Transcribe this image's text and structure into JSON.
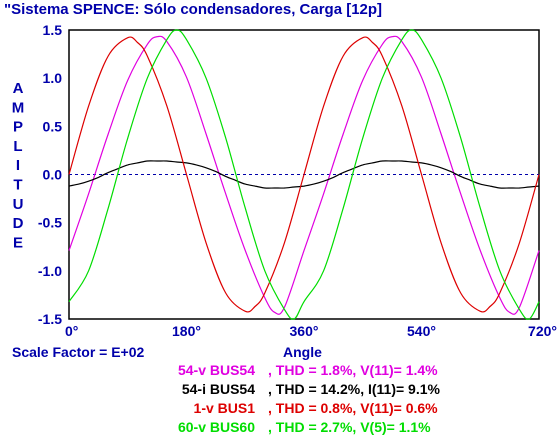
{
  "colors": {
    "axis_text": "#0000aa",
    "frame": "#000000",
    "zero_line": "#0000aa"
  },
  "chart_data": {
    "type": "line",
    "title": "\"Sistema SPENCE: Sólo condensadores, Carga [12p]",
    "xlabel": "Angle",
    "ylabel": "AMPLITUDE",
    "xlim": [
      0,
      720
    ],
    "ylim": [
      -1.5,
      1.5
    ],
    "x_ticks": [
      0,
      180,
      360,
      540,
      720
    ],
    "x_tick_labels": [
      "0°",
      "180°",
      "360°",
      "540°",
      "720°"
    ],
    "y_ticks": [
      1.5,
      1.0,
      0.5,
      0.0,
      -0.5,
      -1.0,
      -1.5
    ],
    "y_tick_labels": [
      "1.5",
      "1.0",
      "0.5",
      "0.0",
      "-0.5",
      "-1.0",
      "-1.5"
    ],
    "zero_line": true,
    "scale_factor": "Scale Factor = E+02",
    "series": [
      {
        "name": "54-v  BUS54",
        "color": "#e000e0",
        "thd": ", THD =  1.8%, V(11)= 1.4%",
        "x": [
          0,
          30,
          60,
          90,
          120,
          135,
          150,
          180,
          210,
          240,
          270,
          300,
          315,
          330,
          360,
          390,
          420,
          450,
          480,
          495,
          510,
          540,
          570,
          600,
          630,
          660,
          675,
          690,
          720
        ],
        "values": [
          -0.79,
          -0.2,
          0.42,
          0.98,
          1.35,
          1.43,
          1.38,
          1.01,
          0.42,
          -0.2,
          -0.79,
          -1.28,
          -1.43,
          -1.38,
          -0.79,
          -0.2,
          0.42,
          0.98,
          1.35,
          1.43,
          1.38,
          1.01,
          0.42,
          -0.2,
          -0.79,
          -1.28,
          -1.43,
          -1.38,
          -0.79
        ]
      },
      {
        "name": "54-i  BUS54",
        "color": "#000000",
        "thd": ", THD = 14.2%, I(11)= 9.1%",
        "x": [
          0,
          15,
          30,
          45,
          60,
          75,
          90,
          105,
          120,
          135,
          150,
          165,
          180,
          195,
          210,
          225,
          240,
          255,
          270,
          285,
          300,
          315,
          330,
          345,
          360,
          375,
          390,
          405,
          420,
          435,
          450,
          465,
          480,
          495,
          510,
          525,
          540,
          555,
          570,
          585,
          600,
          615,
          630,
          645,
          660,
          675,
          690,
          705,
          720
        ],
        "values": [
          -0.12,
          -0.1,
          -0.07,
          -0.03,
          0.02,
          0.06,
          0.1,
          0.12,
          0.14,
          0.14,
          0.14,
          0.13,
          0.12,
          0.1,
          0.07,
          0.03,
          -0.02,
          -0.06,
          -0.1,
          -0.12,
          -0.14,
          -0.14,
          -0.14,
          -0.13,
          -0.12,
          -0.1,
          -0.07,
          -0.03,
          0.02,
          0.06,
          0.1,
          0.12,
          0.14,
          0.14,
          0.14,
          0.13,
          0.12,
          0.1,
          0.07,
          0.03,
          -0.02,
          -0.06,
          -0.1,
          -0.12,
          -0.14,
          -0.14,
          -0.14,
          -0.13,
          -0.12
        ]
      },
      {
        "name": "1-v  BUS1",
        "color": "#dd0000",
        "thd": ", THD =  0.8%, V(11)= 0.6%",
        "x": [
          0,
          30,
          60,
          90,
          105,
          120,
          150,
          180,
          210,
          240,
          270,
          285,
          300,
          330,
          360,
          390,
          420,
          450,
          465,
          480,
          510,
          540,
          570,
          600,
          630,
          645,
          660,
          690,
          720
        ],
        "values": [
          0.0,
          0.71,
          1.23,
          1.42,
          1.37,
          1.23,
          0.71,
          0.0,
          -0.71,
          -1.23,
          -1.42,
          -1.37,
          -1.23,
          -0.71,
          0.0,
          0.71,
          1.23,
          1.42,
          1.37,
          1.23,
          0.71,
          0.0,
          -0.71,
          -1.23,
          -1.42,
          -1.37,
          -1.23,
          -0.71,
          0.0
        ]
      },
      {
        "name": "60-v  BUS60",
        "color": "#00dd00",
        "thd": ", THD =  2.7%, V(5)= 1.1%",
        "x": [
          0,
          30,
          60,
          90,
          120,
          150,
          165,
          180,
          210,
          240,
          270,
          300,
          330,
          345,
          360,
          390,
          420,
          450,
          480,
          510,
          525,
          540,
          570,
          600,
          630,
          660,
          690,
          705,
          720
        ],
        "values": [
          -1.32,
          -1.0,
          -0.35,
          0.38,
          1.0,
          1.4,
          1.5,
          1.4,
          1.0,
          0.38,
          -0.35,
          -1.0,
          -1.4,
          -1.5,
          -1.32,
          -1.0,
          -0.35,
          0.38,
          1.0,
          1.4,
          1.5,
          1.4,
          1.0,
          0.38,
          -0.35,
          -1.0,
          -1.4,
          -1.5,
          -1.32
        ]
      }
    ]
  }
}
